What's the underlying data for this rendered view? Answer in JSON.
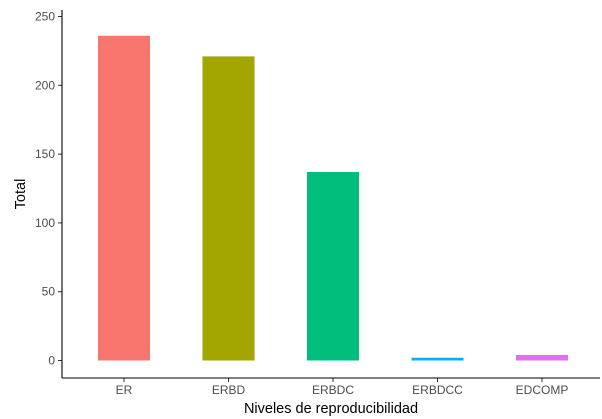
{
  "chart_data": {
    "type": "bar",
    "xlabel": "Niveles de reproducibilidad",
    "ylabel": "Total",
    "categories": [
      "ER",
      "ERBD",
      "ERBDC",
      "ERBDCC",
      "EDCOMP"
    ],
    "values": [
      236,
      221,
      137,
      2,
      4
    ],
    "colors": [
      "#F8766D",
      "#A3A500",
      "#00BF7D",
      "#00B0F6",
      "#E76BF3"
    ],
    "ylim": [
      0,
      250
    ],
    "yticks": [
      0,
      50,
      100,
      150,
      200,
      250
    ],
    "grid": false,
    "legend": "none"
  }
}
